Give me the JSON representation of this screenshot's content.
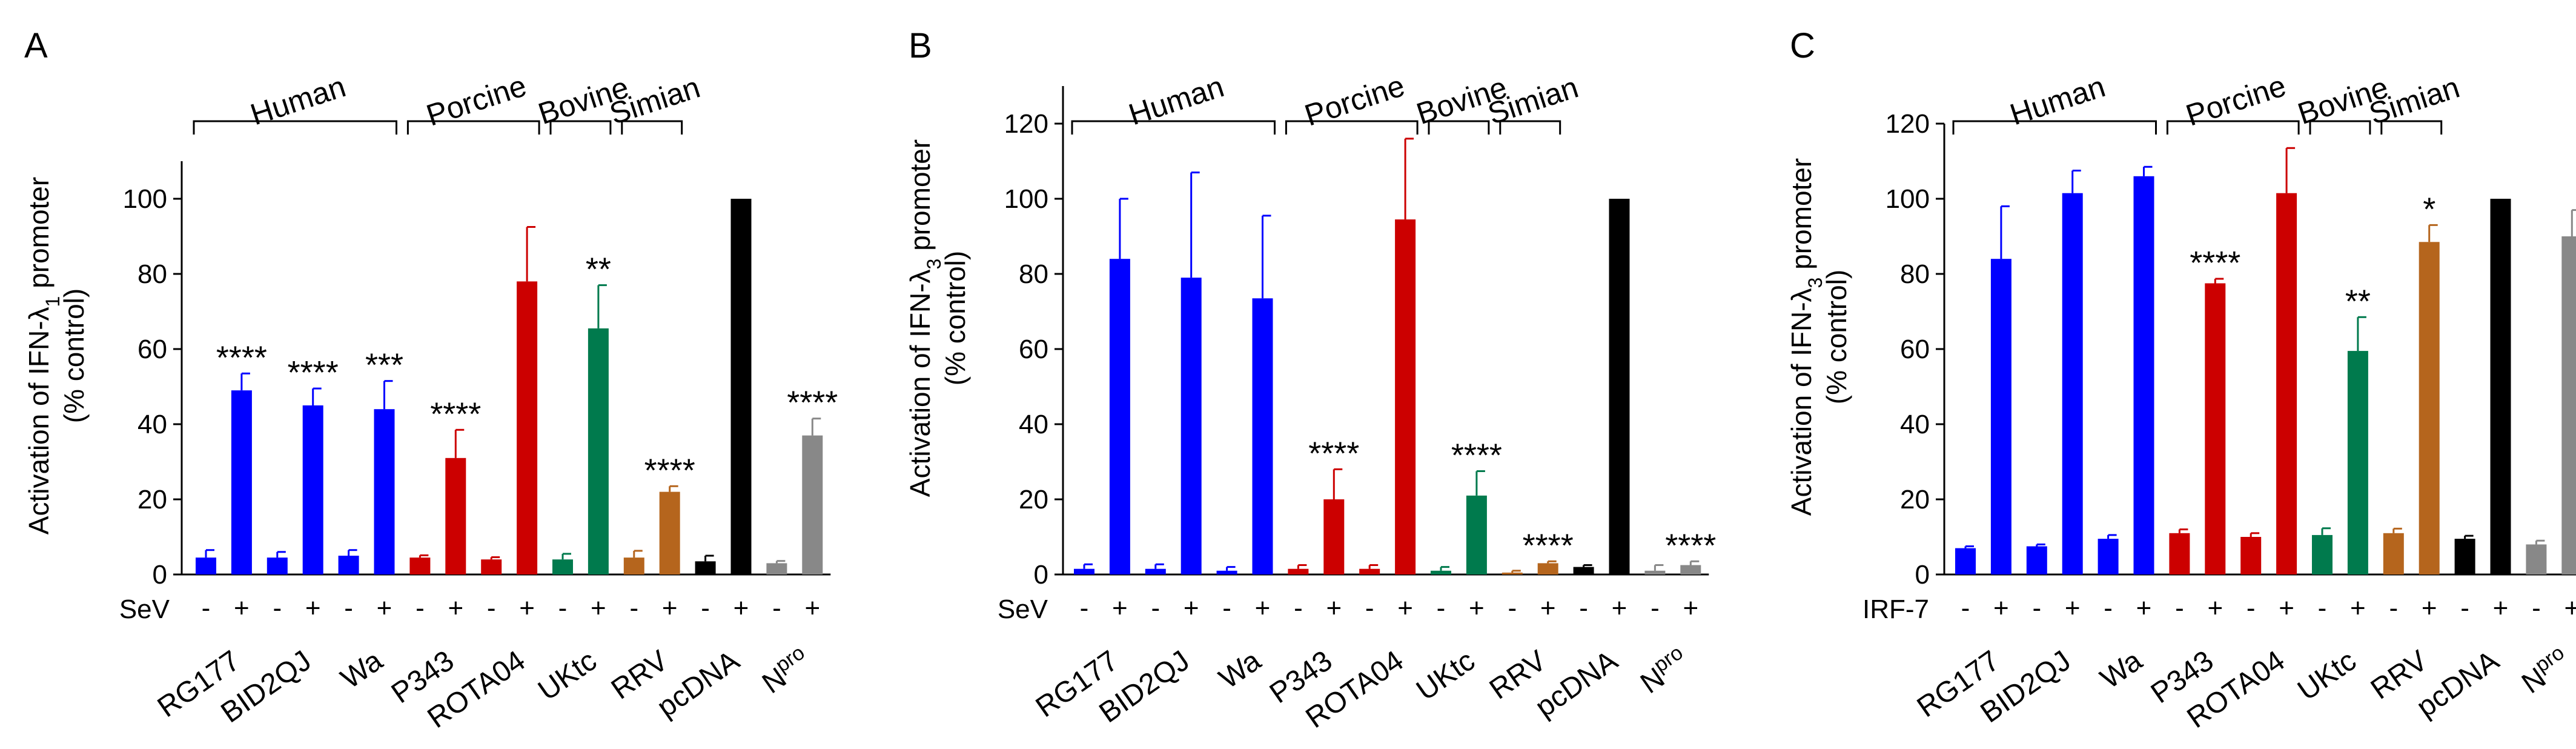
{
  "groups": [
    "Human",
    "Porcine",
    "Bovine",
    "Simian"
  ],
  "categories": [
    "RG177",
    "BID2QJ",
    "Wa",
    "P343",
    "ROTA04",
    "UKtc",
    "RRV",
    "pcDNA",
    "N<sup>pro</sup>"
  ],
  "category_labels": [
    "RG177",
    "BID2QJ",
    "Wa",
    "P343",
    "ROTA04",
    "UKtc",
    "RRV",
    "pcDNA",
    "N"
  ],
  "npro_superscript": "pro",
  "minus_sign": "-",
  "plus_sign": "+",
  "colors": {
    "RG177": "#0000ff",
    "BID2QJ": "#0000ff",
    "Wa": "#0000ff",
    "P343": "#cc0000",
    "ROTA04": "#cc0000",
    "UKtc": "#007a4d",
    "RRV": "#b5651d",
    "pcDNA": "#000000",
    "Npro": "#888888"
  },
  "chart_data": [
    {
      "panel": "A",
      "type": "bar",
      "treatment_label": "SeV",
      "ylabel_line1": "Activation of IFN-λ",
      "ylabel_sub": "1",
      "ylabel_line1_suffix": " promoter",
      "ylabel_line2": "(% control)",
      "ylim": [
        0,
        110
      ],
      "yticks": [
        0,
        20,
        40,
        60,
        80,
        100
      ],
      "yticklabels": [
        "0",
        "20",
        "40",
        "60",
        "80",
        "100"
      ],
      "series": [
        {
          "name": "-",
          "values": [
            4.5,
            4.5,
            5,
            4.5,
            4,
            4,
            4.5,
            3.5,
            3
          ],
          "errors": [
            2,
            1.5,
            1.5,
            0.6,
            0.6,
            1.5,
            1.8,
            1.5,
            0.6
          ]
        },
        {
          "name": "+",
          "values": [
            49,
            45,
            44,
            31,
            78,
            65.5,
            22,
            100,
            37
          ],
          "errors": [
            4.5,
            4.5,
            7.5,
            7.5,
            14.5,
            11.5,
            1.5,
            0,
            4.5
          ]
        }
      ],
      "significance": [
        "****",
        "****",
        "***",
        "****",
        "",
        "**",
        "****",
        "",
        "****"
      ]
    },
    {
      "panel": "B",
      "type": "bar",
      "treatment_label": "SeV",
      "ylabel_line1": "Activation of IFN-λ",
      "ylabel_sub": "3",
      "ylabel_line1_suffix": " promoter",
      "ylabel_line2": "(% control)",
      "ylim": [
        0,
        130
      ],
      "yticks": [
        0,
        20,
        40,
        60,
        80,
        100,
        120
      ],
      "yticklabels": [
        "0",
        "20",
        "40",
        "60",
        "80",
        "100",
        "120"
      ],
      "series": [
        {
          "name": "-",
          "values": [
            1.5,
            1.5,
            1,
            1.5,
            1.5,
            1,
            0.5,
            2,
            1
          ],
          "errors": [
            1.2,
            1.2,
            1,
            1,
            1,
            1,
            0.5,
            0.5,
            1.5
          ]
        },
        {
          "name": "+",
          "values": [
            84,
            79,
            73.5,
            20,
            94.5,
            21,
            3,
            100,
            2.5
          ],
          "errors": [
            16,
            28,
            22,
            8,
            21.5,
            6.5,
            0.5,
            0,
            1
          ]
        }
      ],
      "significance": [
        "",
        "",
        "",
        "****",
        "",
        "****",
        "****",
        "",
        "****"
      ]
    },
    {
      "panel": "C",
      "type": "bar",
      "treatment_label": "IRF-7",
      "ylabel_line1": "Activation of IFN-λ",
      "ylabel_sub": "3",
      "ylabel_line1_suffix": " promoter",
      "ylabel_line2": "(% control)",
      "ylim": [
        0,
        120
      ],
      "yticks": [
        0,
        20,
        40,
        60,
        80,
        100,
        120
      ],
      "yticklabels": [
        "0",
        "20",
        "40",
        "60",
        "80",
        "100",
        "120"
      ],
      "series": [
        {
          "name": "-",
          "values": [
            7,
            7.5,
            9.5,
            11,
            10,
            10.5,
            11,
            9.5,
            8
          ],
          "errors": [
            0.5,
            0.5,
            1,
            1,
            1,
            1.8,
            1.2,
            0.8,
            1
          ]
        },
        {
          "name": "+",
          "values": [
            84,
            101.5,
            106,
            77.5,
            101.5,
            59.5,
            88.5,
            100,
            90
          ],
          "errors": [
            14,
            6,
            2.5,
            1.2,
            12,
            9,
            4.5,
            0,
            7
          ]
        }
      ],
      "significance": [
        "",
        "",
        "",
        "****",
        "",
        "**",
        "*",
        "",
        ""
      ]
    }
  ]
}
